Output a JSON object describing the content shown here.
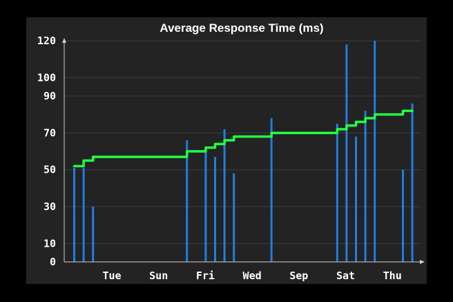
{
  "chart_data": {
    "type": "bar",
    "title": "Average Response Time (ms)",
    "xlabel": "",
    "ylabel": "",
    "ylim": [
      0,
      120
    ],
    "y_ticks": [
      0,
      10,
      30,
      50,
      70,
      90,
      100,
      120
    ],
    "x_ticks": [
      "Tue",
      "Sun",
      "Fri",
      "Wed",
      "Sep",
      "Sat",
      "Thu"
    ],
    "grid": true,
    "colors": {
      "background": "#000000",
      "panel": "#232323",
      "grid": "#3e3e3e",
      "axis": "#d0d0d0",
      "bars": "#1e7fe0",
      "line": "#22ff44"
    },
    "bars": [
      {
        "slot": 1,
        "value": 51
      },
      {
        "slot": 2,
        "value": 51
      },
      {
        "slot": 3,
        "value": 30
      },
      {
        "slot": 13,
        "value": 66
      },
      {
        "slot": 15,
        "value": 61
      },
      {
        "slot": 16,
        "value": 57
      },
      {
        "slot": 17,
        "value": 72
      },
      {
        "slot": 18,
        "value": 48
      },
      {
        "slot": 22,
        "value": 78
      },
      {
        "slot": 29,
        "value": 75
      },
      {
        "slot": 30,
        "value": 118
      },
      {
        "slot": 31,
        "value": 68
      },
      {
        "slot": 32,
        "value": 82
      },
      {
        "slot": 33,
        "value": 120
      },
      {
        "slot": 36,
        "value": 50
      },
      {
        "slot": 37,
        "value": 86
      }
    ],
    "line_series": [
      {
        "slot": 1,
        "value": 52
      },
      {
        "slot": 2,
        "value": 55
      },
      {
        "slot": 3,
        "value": 57
      },
      {
        "slot": 13,
        "value": 60
      },
      {
        "slot": 15,
        "value": 62
      },
      {
        "slot": 16,
        "value": 64
      },
      {
        "slot": 17,
        "value": 66
      },
      {
        "slot": 18,
        "value": 68
      },
      {
        "slot": 22,
        "value": 70
      },
      {
        "slot": 29,
        "value": 72
      },
      {
        "slot": 30,
        "value": 74
      },
      {
        "slot": 31,
        "value": 76
      },
      {
        "slot": 32,
        "value": 78
      },
      {
        "slot": 33,
        "value": 80
      },
      {
        "slot": 36,
        "value": 82
      },
      {
        "slot": 37,
        "value": 82
      }
    ]
  }
}
